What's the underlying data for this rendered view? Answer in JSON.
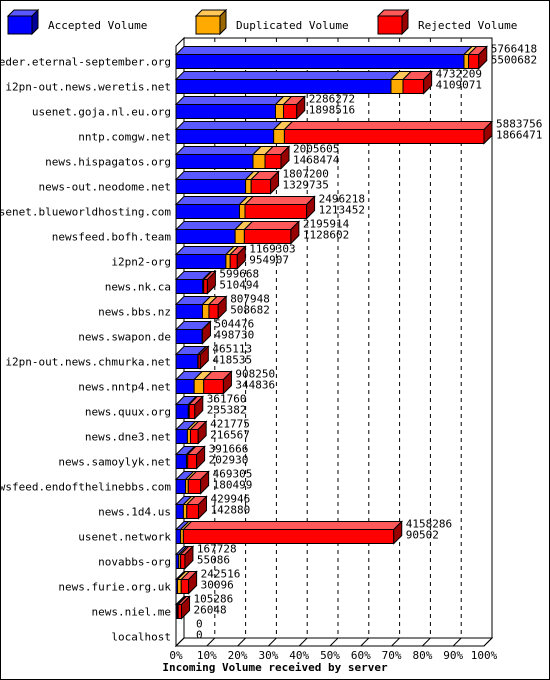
{
  "chart_data": {
    "type": "bar",
    "orientation": "horizontal",
    "stacked": true,
    "xlabel": "Incoming Volume received by server",
    "x_ticks": [
      "0%",
      "10%",
      "20%",
      "30%",
      "40%",
      "50%",
      "60%",
      "70%",
      "80%",
      "90%",
      "100%"
    ],
    "xlim": [
      0,
      100
    ],
    "legend_position": "top",
    "legend": [
      {
        "name": "Accepted Volume",
        "color": "#0000ff"
      },
      {
        "name": "Duplicated Volume",
        "color": "#ffaa00"
      },
      {
        "name": "Rejected Volume",
        "color": "#ff0000"
      }
    ],
    "categories": [
      "feeder.eternal-september.org",
      "i2pn-out.news.weretis.net",
      "usenet.goja.nl.eu.org",
      "nntp.comgw.net",
      "news.hispagatos.org",
      "news-out.neodome.net",
      "usenet.blueworldhosting.com",
      "newsfeed.bofh.team",
      "i2pn2-org",
      "news.nk.ca",
      "news.bbs.nz",
      "news.swapon.de",
      "i2pn-out.news.chmurka.net",
      "news.nntp4.net",
      "news.quux.org",
      "news.dne3.net",
      "news.samoylyk.net",
      "newsfeed.endofthelinebbs.com",
      "news.1d4.us",
      "usenet.network",
      "novabbs-org",
      "news.furie.org.uk",
      "news.niel.me",
      "localhost"
    ],
    "total_volume": [
      "5766418",
      "4732209",
      "2286272",
      "5883756",
      "2005605",
      "1807200",
      "2496218",
      "2195914",
      "1169303",
      "599668",
      "807948",
      "504476",
      "465113",
      "908250",
      "361760",
      "421775",
      "391666",
      "469305",
      "429946",
      "4158286",
      "167728",
      "242516",
      "105286",
      "0"
    ],
    "accepted_volume": [
      "5500682",
      "4109071",
      "1898516",
      "1866471",
      "1468474",
      "1329735",
      "1213452",
      "1128602",
      "954907",
      "510494",
      "508682",
      "498730",
      "418535",
      "344836",
      "235382",
      "216567",
      "202930",
      "180499",
      "142880",
      "90502",
      "55086",
      "30096",
      "26048",
      "0"
    ],
    "series": [
      {
        "name": "Accepted Volume",
        "values": [
          93.5,
          69.8,
          32.3,
          31.7,
          25.0,
          22.6,
          20.6,
          19.2,
          16.2,
          8.7,
          8.6,
          8.5,
          7.1,
          5.9,
          4.0,
          3.7,
          3.4,
          3.1,
          2.4,
          1.5,
          0.9,
          0.5,
          0.4,
          0
        ]
      },
      {
        "name": "Duplicated Volume",
        "values": [
          1.5,
          3.9,
          2.6,
          3.5,
          3.9,
          1.8,
          1.8,
          3.0,
          1.4,
          0.3,
          2.1,
          0.0,
          0.1,
          3.1,
          0.3,
          1.0,
          0.4,
          0.9,
          1.1,
          0.9,
          0.6,
          1.2,
          0.3,
          0
        ]
      },
      {
        "name": "Rejected Volume",
        "values": [
          3.3,
          6.7,
          4.3,
          64.8,
          5.2,
          6.3,
          20.0,
          15.1,
          2.3,
          1.2,
          3.0,
          0.1,
          0.7,
          6.4,
          1.8,
          2.5,
          2.9,
          4.0,
          3.8,
          68.3,
          1.4,
          2.4,
          1.1,
          0
        ]
      }
    ]
  }
}
